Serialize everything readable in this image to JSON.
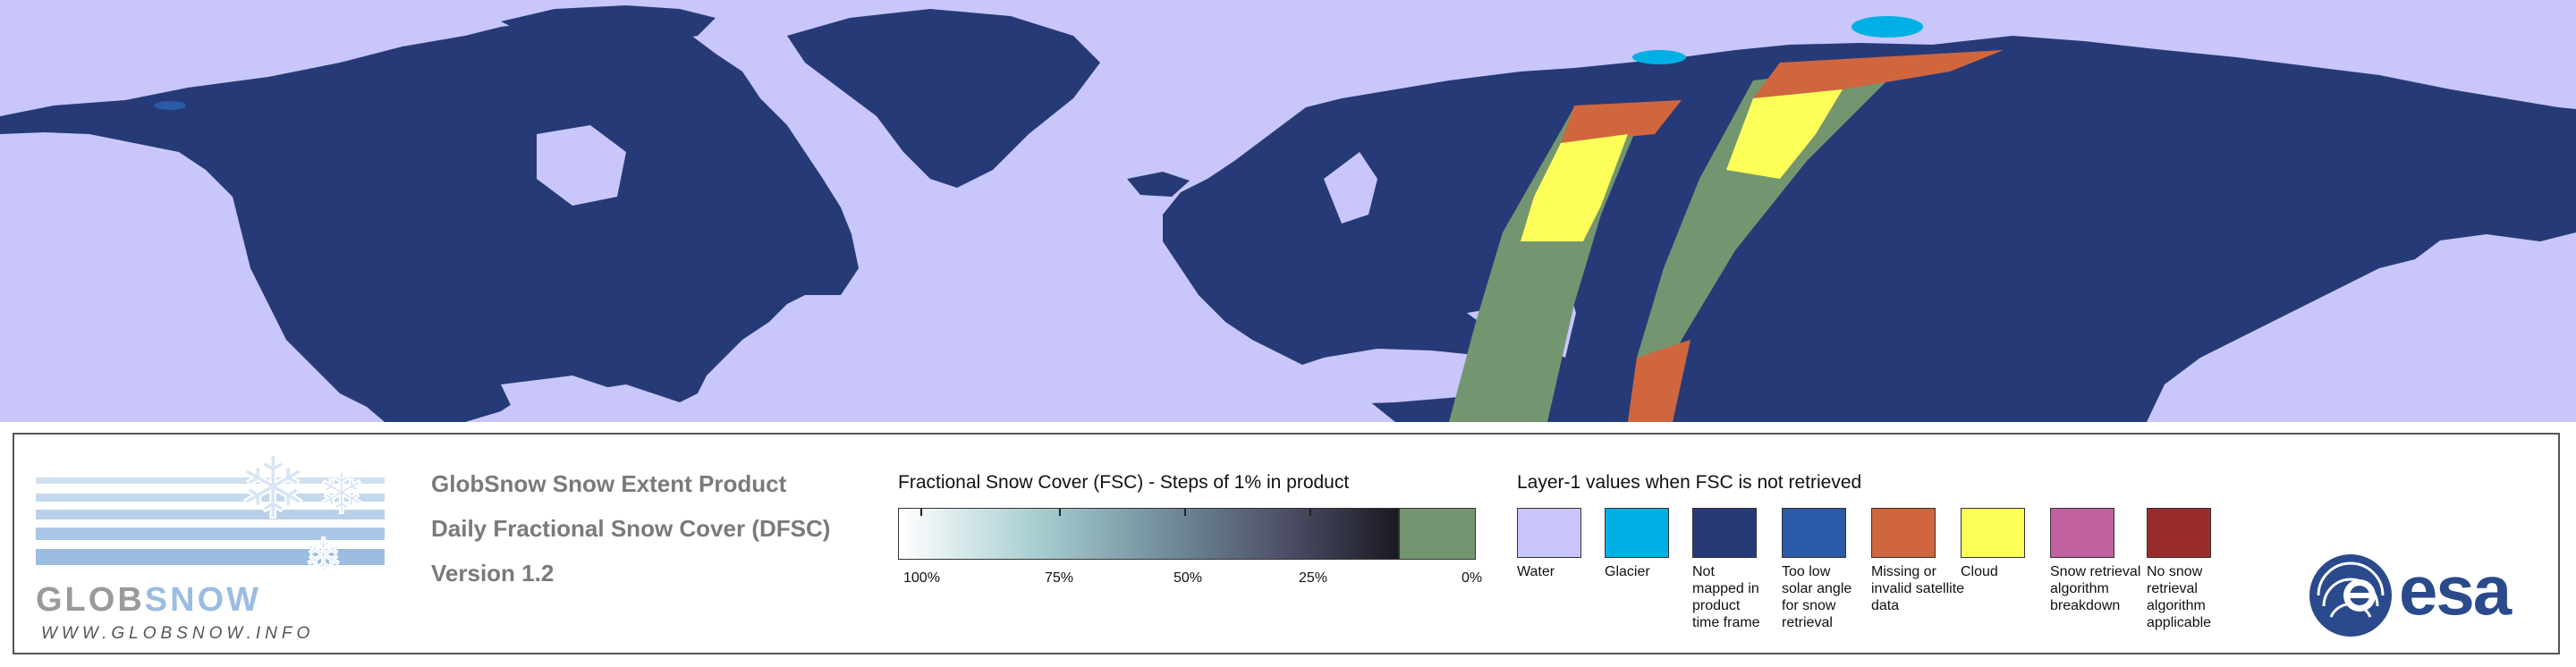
{
  "logo": {
    "wordmark_a": "GLOB",
    "wordmark_b": "SNOW",
    "url": "WWW.GLOBSNOW.INFO"
  },
  "product": {
    "title": "GlobSnow Snow Extent Product",
    "subtitle": "Daily Fractional Snow Cover (DFSC)",
    "version": "Version 1.2"
  },
  "fsc_scale": {
    "heading": "Fractional Snow Cover (FSC) - Steps of 1% in product",
    "ticks": [
      "100%",
      "75%",
      "50%",
      "25%",
      "0%"
    ],
    "gradient_start": "#ffffff",
    "gradient_end": "#1a1a22",
    "zero_color": "#739670"
  },
  "layer1": {
    "heading": "Layer-1 values when FSC is not retrieved",
    "items": [
      {
        "label": "Water",
        "color": "#c8c6fb"
      },
      {
        "label": "Glacier",
        "color": "#00b0e4"
      },
      {
        "label": "Not mapped in product time frame",
        "color": "#273a78"
      },
      {
        "label": "Too low solar angle for snow retrieval",
        "color": "#2a5aa8"
      },
      {
        "label": "Missing or invalid satellite data",
        "color": "#d0663e"
      },
      {
        "label": "Cloud",
        "color": "#ffff5a"
      },
      {
        "label": "Snow retrieval algorithm breakdown",
        "color": "#c0609e"
      },
      {
        "label": "No snow retrieval algorithm applicable",
        "color": "#9a2c2c"
      }
    ]
  },
  "esa": {
    "name": "esa"
  },
  "colors": {
    "water": "#c8c6fb",
    "land": "#273a78",
    "cloud": "#ffff5a",
    "missing": "#d0663e",
    "fsc0": "#739670",
    "glacier": "#00b0e4"
  }
}
